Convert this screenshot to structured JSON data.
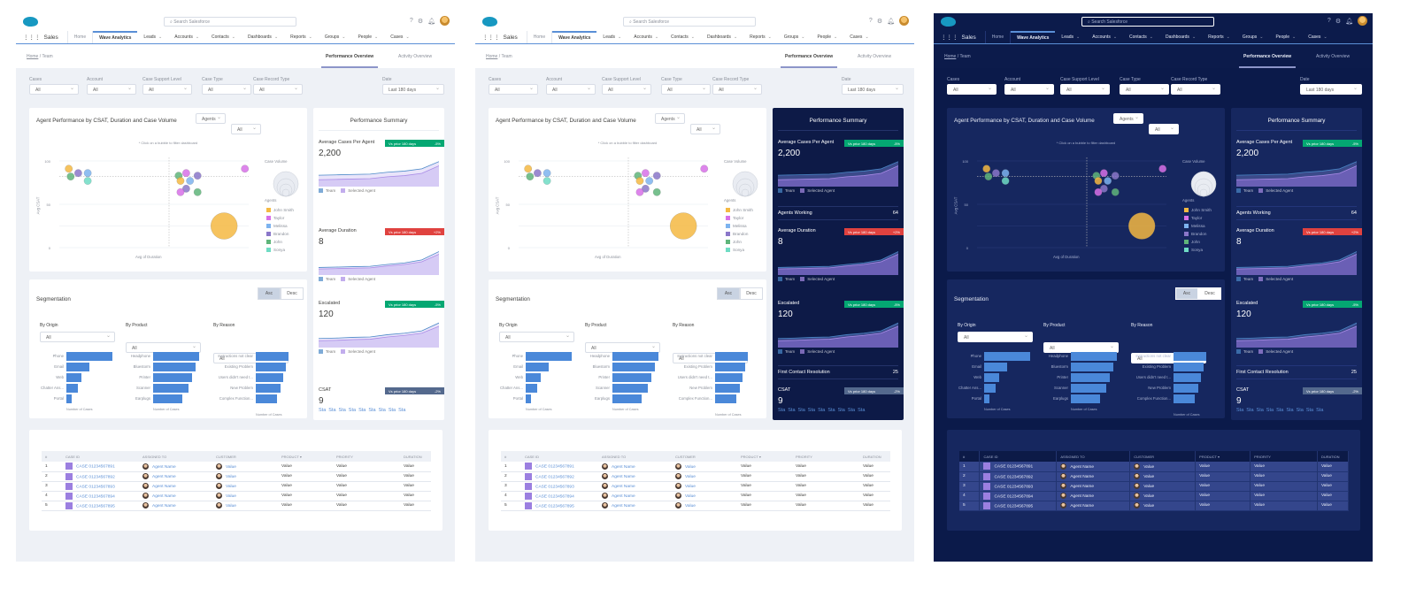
{
  "app": {
    "name": "Sales",
    "search_placeholder": "Search Salesforce",
    "help_icon": "question-icon",
    "settings_icon": "gear-icon",
    "notifications_icon": "bell-icon"
  },
  "nav": [
    {
      "label": "Home"
    },
    {
      "label": "Wave Analytics",
      "active": true
    },
    {
      "label": "Leads"
    },
    {
      "label": "Accounts"
    },
    {
      "label": "Contacts"
    },
    {
      "label": "Dashboards"
    },
    {
      "label": "Reports"
    },
    {
      "label": "Groups"
    },
    {
      "label": "People"
    },
    {
      "label": "Cases"
    }
  ],
  "breadcrumb": {
    "home": "Home",
    "separator": "/",
    "current": "Team"
  },
  "view_tabs": [
    {
      "label": "Performance Overview",
      "active": true
    },
    {
      "label": "Activity Overview"
    }
  ],
  "filters": [
    {
      "label": "Cases",
      "value": "All"
    },
    {
      "label": "Account",
      "value": "All"
    },
    {
      "label": "Case Support Level",
      "value": "All"
    },
    {
      "label": "Case Type",
      "value": "All"
    },
    {
      "label": "Case Record Type",
      "value": "All"
    }
  ],
  "date_filter": {
    "label": "Date",
    "value": "Last 180 days"
  },
  "agent_chart": {
    "title": "Agent Performance by CSAT, Duration and Case Volume",
    "group_select": "Agents",
    "agent_select": "All",
    "hint": "* Click on a bubble to filter dashboard",
    "xlabel": "Avg of Duration",
    "ylabel": "Avg CSAT",
    "yticks": [
      "100",
      "50",
      "0"
    ],
    "ylim": [
      0,
      100
    ],
    "size_legend": "Case Volume",
    "legend_title": "Agents",
    "agents": [
      {
        "name": "John Smith",
        "color": "#f4b942"
      },
      {
        "name": "Taylor",
        "color": "#d770e8"
      },
      {
        "name": "Melissa",
        "color": "#7db3ef"
      },
      {
        "name": "Brandon",
        "color": "#8a77c9"
      },
      {
        "name": "John",
        "color": "#5fb57a"
      },
      {
        "name": "Sonya",
        "color": "#6fdcc4"
      }
    ],
    "points": [
      {
        "agent": "John Smith",
        "x": 5,
        "y": 91,
        "volume": 1
      },
      {
        "agent": "John",
        "x": 6,
        "y": 82,
        "volume": 1
      },
      {
        "agent": "Brandon",
        "x": 10,
        "y": 86,
        "volume": 1
      },
      {
        "agent": "Melissa",
        "x": 15,
        "y": 86,
        "volume": 1
      },
      {
        "agent": "Sonya",
        "x": 15,
        "y": 77,
        "volume": 1
      },
      {
        "agent": "John",
        "x": 63,
        "y": 83,
        "volume": 1
      },
      {
        "agent": "Taylor",
        "x": 67,
        "y": 86,
        "volume": 1
      },
      {
        "agent": "John Smith",
        "x": 64,
        "y": 77,
        "volume": 1
      },
      {
        "agent": "Melissa",
        "x": 69,
        "y": 77,
        "volume": 1
      },
      {
        "agent": "Brandon",
        "x": 73,
        "y": 83,
        "volume": 1
      },
      {
        "agent": "Brandon",
        "x": 67,
        "y": 68,
        "volume": 1
      },
      {
        "agent": "Taylor",
        "x": 64,
        "y": 64,
        "volume": 1
      },
      {
        "agent": "John",
        "x": 73,
        "y": 64,
        "volume": 1
      },
      {
        "agent": "Taylor",
        "x": 98,
        "y": 91,
        "volume": 1
      },
      {
        "agent": "John Smith",
        "x": 87,
        "y": 25,
        "volume": 14
      }
    ]
  },
  "summary": {
    "title": "Performance Summary",
    "legend": {
      "team": "Team",
      "agent": "Selected Agent",
      "team_color": "#4a88c7",
      "agent_color": "#a98be6"
    },
    "metrics": [
      {
        "label": "Average Cases Per Agent",
        "value": "2,200",
        "badge": "Vs prior 180 days",
        "change": "-5%",
        "status": "positive",
        "team": [
          30,
          31,
          32,
          33,
          38,
          41,
          47,
          66
        ],
        "agent": [
          18,
          19,
          20,
          21,
          26,
          29,
          35,
          55
        ]
      },
      {
        "label": "Average Duration",
        "value": "8",
        "badge": "Vs prior 180 days",
        "change": "+2%",
        "status": "negative",
        "team": [
          20,
          21,
          22,
          23,
          28,
          32,
          40,
          62
        ],
        "agent": [
          16,
          17,
          18,
          19,
          24,
          28,
          35,
          55
        ]
      },
      {
        "label": "Escalated",
        "value": "120",
        "badge": "Vs prior 180 days",
        "change": "-5%",
        "status": "positive",
        "team": [
          24,
          25,
          27,
          28,
          34,
          38,
          44,
          65
        ],
        "agent": [
          18,
          19,
          21,
          22,
          28,
          32,
          38,
          56
        ]
      },
      {
        "label": "CSAT",
        "value": "9",
        "badge": "Vs prior 180 days",
        "change": "-2%",
        "status": "neutral"
      }
    ],
    "agents_working": {
      "label": "Agents Working",
      "value": "64"
    },
    "first_contact_resolution": {
      "label": "First Contact Resolution",
      "value": "25"
    },
    "csat_links": [
      "Sta",
      "Sta",
      "Sta",
      "Sta",
      "Sta",
      "Sta",
      "Sta",
      "Sta",
      "Sta"
    ],
    "status_colors": {
      "positive": "#04a772",
      "negative": "#e0423f",
      "neutral": "#54698d"
    }
  },
  "segmentation": {
    "title": "Segmentation",
    "sort": {
      "asc": "Asc",
      "desc": "Desc",
      "active": "asc"
    },
    "axis_label": "Number of Cases",
    "groups": [
      {
        "label": "By Origin",
        "filter": "All",
        "items": [
          {
            "name": "Phone",
            "value": 100
          },
          {
            "name": "Email",
            "value": 50
          },
          {
            "name": "Web",
            "value": 32
          },
          {
            "name": "Chatter Ans...",
            "value": 25
          },
          {
            "name": "Portal",
            "value": 12
          }
        ]
      },
      {
        "label": "By Product",
        "filter": "All",
        "items": [
          {
            "name": "Headphone",
            "value": 100
          },
          {
            "name": "Bluestorm",
            "value": 93
          },
          {
            "name": "Printer",
            "value": 85
          },
          {
            "name": "Scanner",
            "value": 77
          },
          {
            "name": "Earplugs",
            "value": 64
          }
        ]
      },
      {
        "label": "By Reason",
        "filter": "All",
        "items": [
          {
            "name": "Instructions not clear",
            "value": 100
          },
          {
            "name": "Existing Problem",
            "value": 93
          },
          {
            "name": "Users didn't need t...",
            "value": 85
          },
          {
            "name": "New Problem",
            "value": 77
          },
          {
            "name": "Complex Function...",
            "value": 64
          }
        ]
      }
    ]
  },
  "table": {
    "columns": [
      "#",
      "CASE ID",
      "ASSIGNED TO",
      "CUSTOMER",
      "PRODUCT ▾",
      "PRIORITY",
      "DURATION"
    ],
    "rows": [
      {
        "n": "1",
        "case": "CASE 01234567891",
        "agent": "Agent Name",
        "customer": "Value",
        "product": "Value",
        "priority": "Value",
        "duration": "Value"
      },
      {
        "n": "2",
        "case": "CASE 01234567892",
        "agent": "Agent Name",
        "customer": "Value",
        "product": "Value",
        "priority": "Value",
        "duration": "Value"
      },
      {
        "n": "3",
        "case": "CASE 01234567893",
        "agent": "Agent Name",
        "customer": "Value",
        "product": "Value",
        "priority": "Value",
        "duration": "Value"
      },
      {
        "n": "4",
        "case": "CASE 01234567894",
        "agent": "Agent Name",
        "customer": "Value",
        "product": "Value",
        "priority": "Value",
        "duration": "Value"
      },
      {
        "n": "5",
        "case": "CASE 01234567895",
        "agent": "Agent Name",
        "customer": "Value",
        "product": "Value",
        "priority": "Value",
        "duration": "Value"
      }
    ]
  },
  "themes": [
    "light",
    "mixed",
    "dark"
  ]
}
